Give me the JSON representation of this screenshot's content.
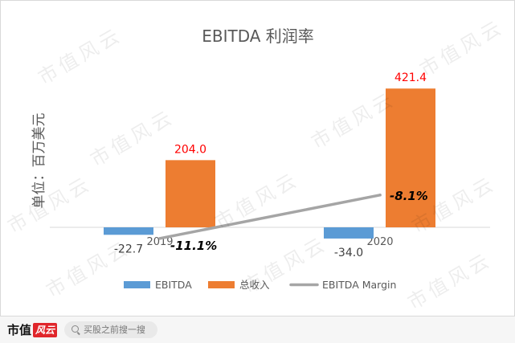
{
  "chart_data": {
    "type": "bar",
    "title": "EBITDA 利润率",
    "xlabel": "",
    "ylabel": "单位：百万美元",
    "categories": [
      "2019",
      "2020"
    ],
    "ylim": [
      -100,
      500
    ],
    "y2lim": [
      -14,
      2
    ],
    "grid": false,
    "legend": "bottom",
    "series": [
      {
        "name": "EBITDA",
        "type": "bar",
        "secondary_axis": false,
        "values": [
          -22.7,
          -34.0
        ],
        "labels": [
          "-22.7",
          "-34.0"
        ],
        "color": "#5b9bd5",
        "label_color": "#404040"
      },
      {
        "name": "总收入",
        "type": "bar",
        "secondary_axis": false,
        "values": [
          204.0,
          421.4
        ],
        "labels": [
          "204.0",
          "421.4"
        ],
        "color": "#ed7d31",
        "label_color": "#ff0000"
      },
      {
        "name": "EBITDA Margin",
        "type": "line",
        "secondary_axis": true,
        "values": [
          -11.1,
          -8.1
        ],
        "labels": [
          "-11.1%",
          "-8.1%"
        ],
        "color": "#a5a5a5",
        "label_color": "#000000"
      }
    ]
  },
  "watermark": {
    "text": "市值风云"
  },
  "footer": {
    "logo_primary": "市值",
    "logo_accent": "风云",
    "accent_color": "#e0262b",
    "search_icon": "search-icon",
    "search_placeholder": "买股之前搜一搜"
  }
}
